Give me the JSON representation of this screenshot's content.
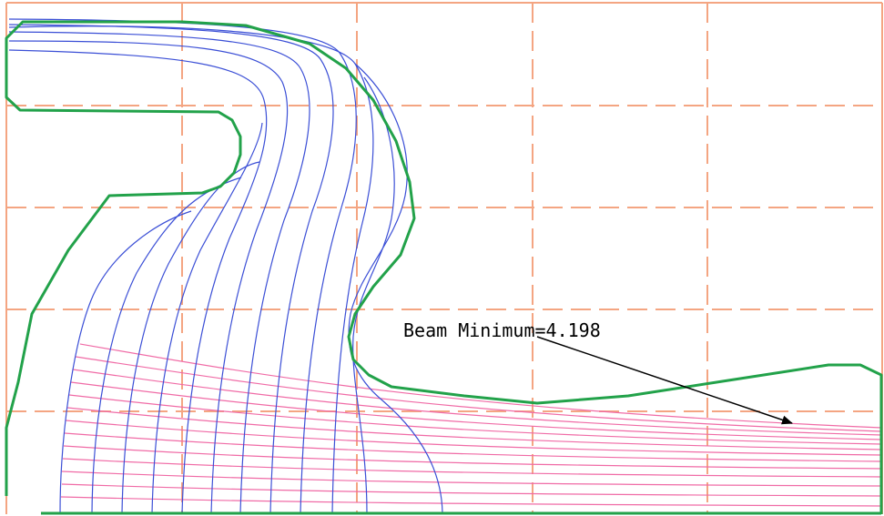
{
  "annotation": {
    "label": "Beam Minimum=4.198"
  },
  "colors": {
    "background": "#ffffff",
    "grid": "#f4a582",
    "boundary": "#22a24a",
    "equipotential": "#3b4fd6",
    "beam": "#f06ba6",
    "arrow": "#000000"
  }
}
